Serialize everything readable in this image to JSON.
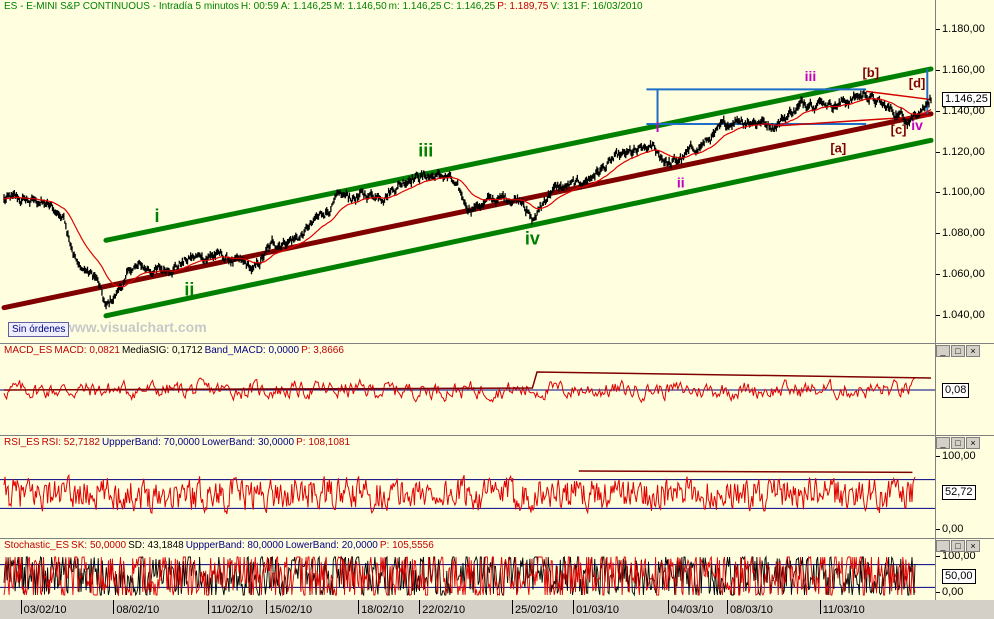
{
  "main": {
    "header": [
      {
        "text": "ES - E-MINI S&P CONTINUOUS - Intradía 5 minutos",
        "color": "#008000"
      },
      {
        "text": "H: 00:59",
        "color": "#008000"
      },
      {
        "text": "A: 1.146,25",
        "color": "#008000"
      },
      {
        "text": "M: 1.146,50",
        "color": "#008000"
      },
      {
        "text": "m: 1.146,25",
        "color": "#008000"
      },
      {
        "text": "C: 1.146,25",
        "color": "#008000"
      },
      {
        "text": "P: 1.189,75",
        "color": "#c00000"
      },
      {
        "text": "V: 131",
        "color": "#008000"
      },
      {
        "text": "F: 16/03/2010",
        "color": "#008000"
      }
    ],
    "badge": "Sin órdenes",
    "watermark": "www.visualchart.com",
    "current": "1.146,25"
  },
  "macd": {
    "header": [
      {
        "text": "MACD_ES",
        "color": "#c00000"
      },
      {
        "text": "MACD: 0,0821",
        "color": "#c00000"
      },
      {
        "text": "MediaSIG: 0,1712",
        "color": "#000000"
      },
      {
        "text": "Band_MACD: 0,0000",
        "color": "#000080"
      },
      {
        "text": "P: 3,8666",
        "color": "#c00000"
      }
    ],
    "current": "0,08"
  },
  "rsi": {
    "header": [
      {
        "text": "RSI_ES",
        "color": "#c00000"
      },
      {
        "text": "RSI: 52,7182",
        "color": "#c00000"
      },
      {
        "text": "UppperBand: 70,0000",
        "color": "#000080"
      },
      {
        "text": "LowerBand: 30,0000",
        "color": "#000080"
      },
      {
        "text": "P: 108,1081",
        "color": "#c00000"
      }
    ],
    "ticks": [
      "100,00",
      "0,00"
    ],
    "current": "52,72"
  },
  "stoch": {
    "header": [
      {
        "text": "Stochastic_ES",
        "color": "#c00000"
      },
      {
        "text": "SK: 50,0000",
        "color": "#c00000"
      },
      {
        "text": "SD: 43,1848",
        "color": "#000000"
      },
      {
        "text": "UppperBand: 80,0000",
        "color": "#000080"
      },
      {
        "text": "LowerBand: 20,0000",
        "color": "#000080"
      },
      {
        "text": "P: 105,5556",
        "color": "#c00000"
      }
    ],
    "ticks": [
      "100,00",
      "0,00"
    ],
    "current": "50,00"
  },
  "window_buttons": [
    "_",
    "□",
    "×"
  ],
  "chart_data": {
    "type": "line",
    "title": "ES - E-MINI S&P CONTINUOUS - Intradía 5 minutos",
    "yticks": [
      "1.180,00",
      "1.160,00",
      "1.140,00",
      "1.120,00",
      "1.100,00",
      "1.080,00",
      "1.060,00",
      "1.040,00"
    ],
    "ylim": [
      1035,
      1185
    ],
    "xticks": [
      "03/02/10",
      "08/02/10",
      "11/02/10",
      "15/02/10",
      "18/02/10",
      "22/02/10",
      "25/02/10",
      "01/03/10",
      "04/03/10",
      "08/03/10",
      "11/03/10"
    ],
    "price_waypoints": [
      {
        "t": 0,
        "y": 1097
      },
      {
        "t": 0.04,
        "y": 1096
      },
      {
        "t": 0.065,
        "y": 1088
      },
      {
        "t": 0.08,
        "y": 1065
      },
      {
        "t": 0.1,
        "y": 1058
      },
      {
        "t": 0.11,
        "y": 1043
      },
      {
        "t": 0.14,
        "y": 1064
      },
      {
        "t": 0.17,
        "y": 1062
      },
      {
        "t": 0.2,
        "y": 1068
      },
      {
        "t": 0.23,
        "y": 1070
      },
      {
        "t": 0.27,
        "y": 1062
      },
      {
        "t": 0.29,
        "y": 1075
      },
      {
        "t": 0.32,
        "y": 1079
      },
      {
        "t": 0.36,
        "y": 1097
      },
      {
        "t": 0.41,
        "y": 1100
      },
      {
        "t": 0.44,
        "y": 1109
      },
      {
        "t": 0.48,
        "y": 1108
      },
      {
        "t": 0.5,
        "y": 1093
      },
      {
        "t": 0.53,
        "y": 1097
      },
      {
        "t": 0.56,
        "y": 1098
      },
      {
        "t": 0.57,
        "y": 1086
      },
      {
        "t": 0.59,
        "y": 1102
      },
      {
        "t": 0.62,
        "y": 1104
      },
      {
        "t": 0.66,
        "y": 1117
      },
      {
        "t": 0.7,
        "y": 1122
      },
      {
        "t": 0.72,
        "y": 1114
      },
      {
        "t": 0.76,
        "y": 1126
      },
      {
        "t": 0.79,
        "y": 1137
      },
      {
        "t": 0.83,
        "y": 1134
      },
      {
        "t": 0.87,
        "y": 1146
      },
      {
        "t": 0.9,
        "y": 1144
      },
      {
        "t": 0.93,
        "y": 1149
      },
      {
        "t": 0.95,
        "y": 1142
      },
      {
        "t": 0.975,
        "y": 1137
      },
      {
        "t": 1,
        "y": 1146.25
      }
    ],
    "channel_lines": [
      {
        "role": "upper",
        "color": "#008000",
        "from": {
          "t": 0.11,
          "y": 1077
        },
        "to": {
          "t": 1.0,
          "y": 1161
        }
      },
      {
        "role": "lower",
        "color": "#008000",
        "from": {
          "t": 0.11,
          "y": 1040
        },
        "to": {
          "t": 1.0,
          "y": 1126
        }
      },
      {
        "role": "trend",
        "color": "#800000",
        "from": {
          "t": 0,
          "y": 1044
        },
        "to": {
          "t": 1.0,
          "y": 1139
        }
      }
    ],
    "wave_labels": [
      {
        "text": "i",
        "t": 0.165,
        "y": 1086,
        "color": "#008000",
        "size": 18
      },
      {
        "text": "ii",
        "t": 0.2,
        "y": 1050,
        "color": "#008000",
        "size": 18
      },
      {
        "text": "iii",
        "t": 0.455,
        "y": 1118,
        "color": "#008000",
        "size": 18
      },
      {
        "text": "iv",
        "t": 0.57,
        "y": 1075,
        "color": "#008000",
        "size": 18
      },
      {
        "text": "i",
        "t": 0.705,
        "y": 1130,
        "color": "#c000c0",
        "size": 14
      },
      {
        "text": "ii",
        "t": 0.73,
        "y": 1103,
        "color": "#c000c0",
        "size": 14
      },
      {
        "text": "iii",
        "t": 0.87,
        "y": 1155,
        "color": "#c000c0",
        "size": 14
      },
      {
        "text": "iv",
        "t": 0.985,
        "y": 1131,
        "color": "#c000c0",
        "size": 14
      },
      {
        "text": "[a]",
        "t": 0.9,
        "y": 1120,
        "color": "#800000",
        "size": 13
      },
      {
        "text": "[b]",
        "t": 0.935,
        "y": 1157,
        "color": "#800000",
        "size": 13
      },
      {
        "text": "[c]",
        "t": 0.965,
        "y": 1129,
        "color": "#800000",
        "size": 13
      },
      {
        "text": "[d]",
        "t": 0.985,
        "y": 1152,
        "color": "#800000",
        "size": 13
      }
    ],
    "rsi_bands": [
      70,
      30
    ],
    "stoch_bands": [
      80,
      20
    ]
  }
}
